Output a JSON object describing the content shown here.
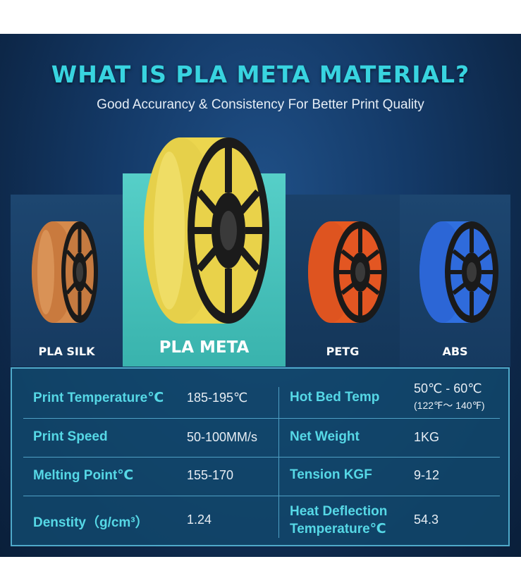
{
  "header": {
    "title": "WHAT IS PLA META MATERIAL?",
    "subtitle": "Good Accurancy & Consistency For Better Print Quality"
  },
  "materials": [
    {
      "name": "PLA SILK",
      "color": "#c9763a"
    },
    {
      "name": "PLA META",
      "color": "#f0dc5a"
    },
    {
      "name": "PETG",
      "color": "#e85a1e"
    },
    {
      "name": "ABS",
      "color": "#2f6fe0"
    }
  ],
  "specs": {
    "left": [
      {
        "label": "Print Temperature℃",
        "value": "185-195℃"
      },
      {
        "label": "Print Speed",
        "value": "50-100MM/s"
      },
      {
        "label": "Melting Point℃",
        "value": "155-170"
      },
      {
        "label": "Denstity（g/cm³）",
        "value": "1.24"
      }
    ],
    "right": [
      {
        "label": "Hot Bed Temp",
        "value": "50℃ - 60℃",
        "value_sub": "(122℉～ 140℉)"
      },
      {
        "label": "Net Weight",
        "value": "1KG"
      },
      {
        "label": "Tension KGF",
        "value": "9-12"
      },
      {
        "label_line1": "Heat Deflection",
        "label_line2": "Temperature℃",
        "value": "54.3"
      }
    ]
  }
}
